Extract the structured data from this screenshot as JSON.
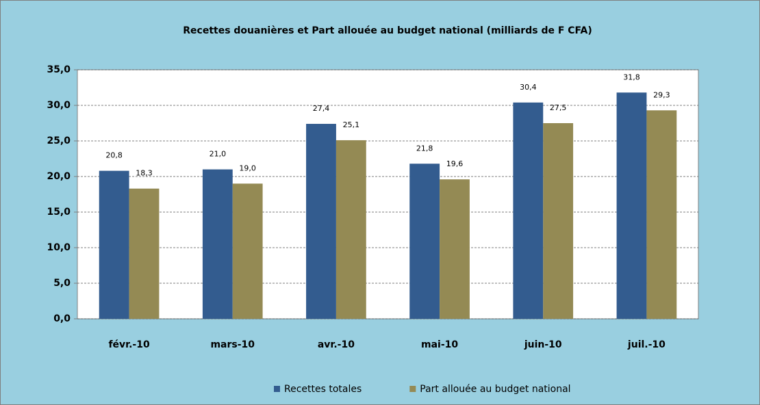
{
  "chart_data": {
    "type": "bar",
    "title": "Recettes douanières  et Part allouée au budget national  (milliards de F CFA)",
    "categories": [
      "févr.-10",
      "mars-10",
      "avr.-10",
      "mai-10",
      "juin-10",
      "juil.-10"
    ],
    "series": [
      {
        "name": "Recettes totales",
        "color": "#335c8f",
        "values": [
          20.8,
          21.0,
          27.4,
          21.8,
          30.4,
          31.8
        ],
        "value_labels": [
          "20,8",
          "21,0",
          "27,4",
          "21,8",
          "30,4",
          "31,8"
        ]
      },
      {
        "name": "Part allouée au budget national",
        "color": "#948a54",
        "values": [
          18.3,
          19.0,
          25.1,
          19.6,
          27.5,
          29.3
        ],
        "value_labels": [
          "18,3",
          "19,0",
          "25,1",
          "19,6",
          "27,5",
          "29,3"
        ]
      }
    ],
    "ylim": [
      0,
      35
    ],
    "yticks": [
      {
        "value": 0,
        "label": "0,0"
      },
      {
        "value": 5,
        "label": "5,0"
      },
      {
        "value": 10,
        "label": "10,0"
      },
      {
        "value": 15,
        "label": "15,0"
      },
      {
        "value": 20,
        "label": "20,0"
      },
      {
        "value": 25,
        "label": "25,0"
      },
      {
        "value": 30,
        "label": "30,0"
      },
      {
        "value": 35,
        "label": "35,0"
      }
    ],
    "grid": true,
    "legend": "bottom"
  }
}
